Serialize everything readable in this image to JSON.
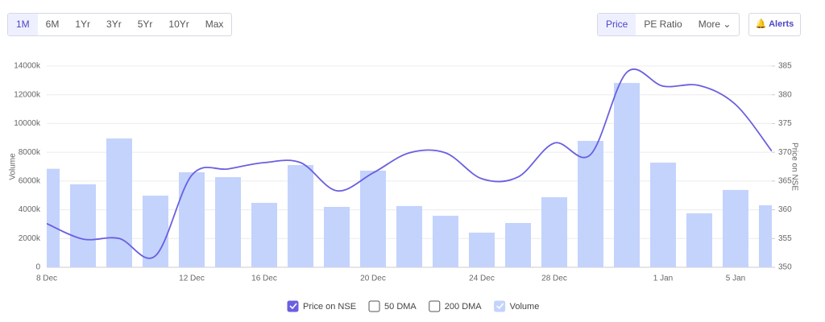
{
  "controls": {
    "ranges": [
      "1M",
      "6M",
      "1Yr",
      "3Yr",
      "5Yr",
      "10Yr",
      "Max"
    ],
    "active_range": "1M",
    "views": [
      "Price",
      "PE Ratio",
      "More"
    ],
    "active_view": "Price",
    "alerts": "Alerts"
  },
  "chart_data": {
    "type": "bar-line",
    "categories": [
      "8 Dec",
      null,
      null,
      null,
      "12 Dec",
      null,
      "16 Dec",
      null,
      null,
      "20 Dec",
      null,
      null,
      "24 Dec",
      null,
      "28 Dec",
      null,
      null,
      "1 Jan",
      null,
      "5 Jan",
      null
    ],
    "series": [
      {
        "name": "Price on NSE",
        "type": "line",
        "axis": "y2",
        "color": "#6a5fe0",
        "values": [
          357.6,
          354.9,
          355.0,
          352.0,
          366.0,
          367.1,
          368.2,
          368.2,
          363.3,
          366.4,
          369.9,
          369.9,
          365.4,
          365.7,
          371.6,
          369.6,
          383.9,
          381.5,
          381.6,
          378.3,
          370.2
        ]
      },
      {
        "name": "Volume",
        "type": "bar",
        "color": "#c3d3fc",
        "values": [
          6850,
          5770,
          8960,
          4980,
          6610,
          6270,
          4480,
          7110,
          4200,
          6720,
          4260,
          3580,
          2410,
          3080,
          4870,
          8790,
          12820,
          7280,
          3750,
          5380,
          4310
        ]
      }
    ],
    "inactive_series": [
      "50 DMA",
      "200 DMA"
    ],
    "ylabel": "Volume",
    "y2label": "Price on NSE",
    "ylim": [
      0,
      14000
    ],
    "yticks": [
      0,
      {
        "value": 2000,
        "label": "2000k"
      },
      {
        "value": 4000,
        "label": "4000k"
      },
      {
        "value": 6000,
        "label": "6000k"
      },
      {
        "value": 8000,
        "label": "8000k"
      },
      {
        "value": 10000,
        "label": "10000k"
      },
      {
        "value": 12000,
        "label": "12000k"
      },
      {
        "value": 14000,
        "label": "14000k"
      }
    ],
    "y2lim": [
      350,
      385
    ],
    "y2ticks": [
      350,
      355,
      360,
      365,
      370,
      375,
      380,
      385
    ],
    "grid": true
  }
}
